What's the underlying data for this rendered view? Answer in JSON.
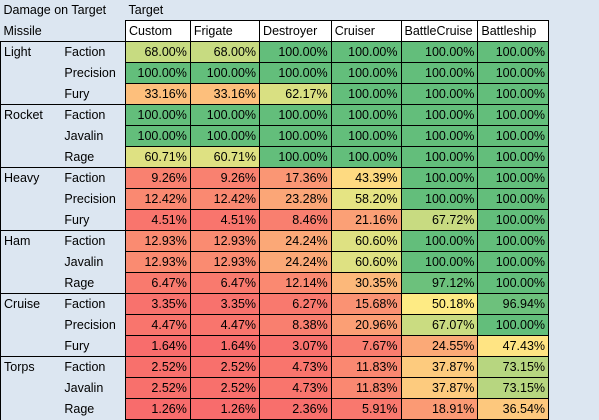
{
  "header": {
    "title": "Damage on Target",
    "target_label": "Target",
    "missile_label": "Missile"
  },
  "columns": [
    "Custom",
    "Frigate",
    "Destroyer",
    "Cruiser",
    "BattleCruise",
    "Battleship"
  ],
  "groups": [
    {
      "name": "Light",
      "rows": [
        {
          "type": "Faction",
          "values": [
            "68.00%",
            "68.00%",
            "100.00%",
            "100.00%",
            "100.00%",
            "100.00%"
          ]
        },
        {
          "type": "Precision",
          "values": [
            "100.00%",
            "100.00%",
            "100.00%",
            "100.00%",
            "100.00%",
            "100.00%"
          ]
        },
        {
          "type": "Fury",
          "values": [
            "33.16%",
            "33.16%",
            "62.17%",
            "100.00%",
            "100.00%",
            "100.00%"
          ]
        }
      ]
    },
    {
      "name": "Rocket",
      "rows": [
        {
          "type": "Faction",
          "values": [
            "100.00%",
            "100.00%",
            "100.00%",
            "100.00%",
            "100.00%",
            "100.00%"
          ]
        },
        {
          "type": "Javalin",
          "values": [
            "100.00%",
            "100.00%",
            "100.00%",
            "100.00%",
            "100.00%",
            "100.00%"
          ]
        },
        {
          "type": "Rage",
          "values": [
            "60.71%",
            "60.71%",
            "100.00%",
            "100.00%",
            "100.00%",
            "100.00%"
          ]
        }
      ]
    },
    {
      "name": "Heavy",
      "rows": [
        {
          "type": "Faction",
          "values": [
            "9.26%",
            "9.26%",
            "17.36%",
            "43.39%",
            "100.00%",
            "100.00%"
          ]
        },
        {
          "type": "Precision",
          "values": [
            "12.42%",
            "12.42%",
            "23.28%",
            "58.20%",
            "100.00%",
            "100.00%"
          ]
        },
        {
          "type": "Fury",
          "values": [
            "4.51%",
            "4.51%",
            "8.46%",
            "21.16%",
            "67.72%",
            "100.00%"
          ]
        }
      ]
    },
    {
      "name": "Ham",
      "rows": [
        {
          "type": "Faction",
          "values": [
            "12.93%",
            "12.93%",
            "24.24%",
            "60.60%",
            "100.00%",
            "100.00%"
          ]
        },
        {
          "type": "Javalin",
          "values": [
            "12.93%",
            "12.93%",
            "24.24%",
            "60.60%",
            "100.00%",
            "100.00%"
          ]
        },
        {
          "type": "Rage",
          "values": [
            "6.47%",
            "6.47%",
            "12.14%",
            "30.35%",
            "97.12%",
            "100.00%"
          ]
        }
      ]
    },
    {
      "name": "Cruise",
      "rows": [
        {
          "type": "Faction",
          "values": [
            "3.35%",
            "3.35%",
            "6.27%",
            "15.68%",
            "50.18%",
            "96.94%"
          ]
        },
        {
          "type": "Precision",
          "values": [
            "4.47%",
            "4.47%",
            "8.38%",
            "20.96%",
            "67.07%",
            "100.00%"
          ]
        },
        {
          "type": "Fury",
          "values": [
            "1.64%",
            "1.64%",
            "3.07%",
            "7.67%",
            "24.55%",
            "47.43%"
          ]
        }
      ]
    },
    {
      "name": "Torps",
      "rows": [
        {
          "type": "Faction",
          "values": [
            "2.52%",
            "2.52%",
            "4.73%",
            "11.83%",
            "37.87%",
            "73.15%"
          ]
        },
        {
          "type": "Javalin",
          "values": [
            "2.52%",
            "2.52%",
            "4.73%",
            "11.83%",
            "37.87%",
            "73.15%"
          ]
        },
        {
          "type": "Rage",
          "values": [
            "1.26%",
            "1.26%",
            "2.36%",
            "5.91%",
            "18.91%",
            "36.54%"
          ]
        }
      ]
    }
  ],
  "colors": {
    "low": "#f8696b",
    "mid": "#ffeb84",
    "high": "#63be7b",
    "background": "#dce6f1"
  }
}
